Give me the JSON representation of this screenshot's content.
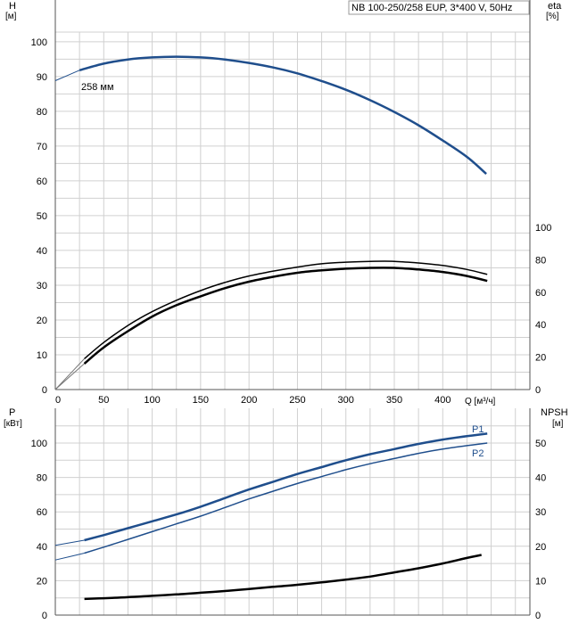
{
  "chart_data": [
    {
      "type": "line",
      "title": "NB 100-250/258 EUP, 3*400 V, 50Hz",
      "y_left_label": "H",
      "y_left_unit": "[м]",
      "y_right_label": "eta",
      "y_right_unit": "[%]",
      "x_label": "Q [м³/ч]",
      "xlim": [
        0,
        490
      ],
      "ylim_left": [
        0,
        112
      ],
      "ylim_right": [
        0,
        100
      ],
      "x_ticks": [
        "0",
        "50",
        "100",
        "150",
        "200",
        "250",
        "300",
        "350",
        "400"
      ],
      "x_tick_values": [
        0,
        50,
        100,
        150,
        200,
        250,
        300,
        350,
        400
      ],
      "y_left_ticks": [
        "0",
        "10",
        "20",
        "30",
        "40",
        "50",
        "60",
        "70",
        "80",
        "90",
        "100"
      ],
      "y_left_tick_values": [
        0,
        10,
        20,
        30,
        40,
        50,
        60,
        70,
        80,
        90,
        100
      ],
      "y_right_ticks": [
        "0",
        "20",
        "40",
        "60",
        "80",
        "100"
      ],
      "y_right_tick_values": [
        0,
        20,
        40,
        60,
        80,
        100
      ],
      "grid": true,
      "series": [
        {
          "name": "258 мм",
          "axis": "left",
          "color": "#1f4e8c",
          "x": [
            0,
            25,
            50,
            75,
            100,
            125,
            150,
            175,
            200,
            225,
            250,
            275,
            300,
            325,
            350,
            375,
            400,
            425,
            445,
            465,
            488
          ],
          "y": [
            88.8,
            91.8,
            93.7,
            94.9,
            95.5,
            95.7,
            95.5,
            94.9,
            93.9,
            92.6,
            90.9,
            88.7,
            86.2,
            83.2,
            79.8,
            76.0,
            71.6,
            66.9,
            62.0,
            62.0,
            62.0
          ],
          "thin_until_x": 25,
          "end_x": 446
        },
        {
          "name": "",
          "axis": "right",
          "color": "#000000",
          "role": "eta-thin",
          "x": [
            0,
            30,
            50,
            75,
            100,
            125,
            150,
            175,
            200,
            225,
            250,
            275,
            300,
            325,
            350,
            375,
            400,
            425,
            446
          ],
          "y": [
            0,
            19,
            29,
            39.5,
            48,
            55,
            61,
            66,
            70,
            73,
            75.5,
            77.5,
            78.5,
            79,
            79,
            78,
            76.5,
            74,
            71
          ]
        },
        {
          "name": "",
          "axis": "right",
          "color": "#000000",
          "role": "eta-thick",
          "x": [
            0,
            30,
            50,
            75,
            100,
            125,
            150,
            175,
            200,
            225,
            250,
            275,
            300,
            325,
            350,
            375,
            400,
            425,
            446
          ],
          "y": [
            0,
            16,
            26,
            36,
            45,
            52,
            57.5,
            62.5,
            66.5,
            69.5,
            72,
            73.5,
            74.5,
            75,
            75,
            74,
            72.5,
            70,
            67
          ]
        }
      ]
    },
    {
      "type": "line",
      "title": "",
      "y_left_label": "P",
      "y_left_unit": "[кВт]",
      "y_right_label": "NPSH",
      "y_right_unit": "[м]",
      "xlim": [
        0,
        490
      ],
      "ylim_left": [
        0,
        120
      ],
      "ylim_right": [
        0,
        60
      ],
      "y_left_ticks": [
        "0",
        "20",
        "40",
        "60",
        "80",
        "100"
      ],
      "y_left_tick_values": [
        0,
        20,
        40,
        60,
        80,
        100
      ],
      "y_right_ticks": [
        "0",
        "10",
        "20",
        "30",
        "40",
        "50"
      ],
      "y_right_tick_values": [
        0,
        10,
        20,
        30,
        40,
        50
      ],
      "grid": true,
      "series": [
        {
          "name": "P1",
          "axis": "left",
          "color": "#1f4e8c",
          "x": [
            0,
            30,
            50,
            75,
            100,
            125,
            150,
            175,
            200,
            225,
            250,
            275,
            300,
            325,
            350,
            375,
            400,
            425,
            446
          ],
          "y": [
            40.5,
            43.5,
            46.5,
            50.5,
            54.5,
            58.5,
            63,
            68,
            73,
            77.5,
            82,
            86,
            90,
            93.5,
            96.5,
            99.5,
            102,
            104,
            105.5
          ],
          "thin_until_x": 30
        },
        {
          "name": "P2",
          "axis": "left",
          "color": "#1f4e8c",
          "x": [
            0,
            30,
            50,
            75,
            100,
            125,
            150,
            175,
            200,
            225,
            250,
            275,
            300,
            325,
            350,
            375,
            400,
            425,
            446
          ],
          "y": [
            32,
            36,
            39.5,
            44,
            48.5,
            53,
            57.5,
            62.5,
            67.5,
            72,
            76.5,
            80.5,
            84.5,
            88,
            91,
            94,
            96.5,
            98.5,
            100
          ],
          "thin_until_x": 30
        },
        {
          "name": "",
          "axis": "right",
          "color": "#000000",
          "role": "npsh",
          "x": [
            30,
            50,
            75,
            100,
            125,
            150,
            175,
            200,
            225,
            250,
            275,
            300,
            325,
            350,
            375,
            400,
            425,
            440
          ],
          "y": [
            4.7,
            4.9,
            5.2,
            5.6,
            6.0,
            6.5,
            7.0,
            7.6,
            8.2,
            8.8,
            9.5,
            10.3,
            11.2,
            12.4,
            13.6,
            15.0,
            16.6,
            17.5
          ]
        }
      ]
    }
  ]
}
